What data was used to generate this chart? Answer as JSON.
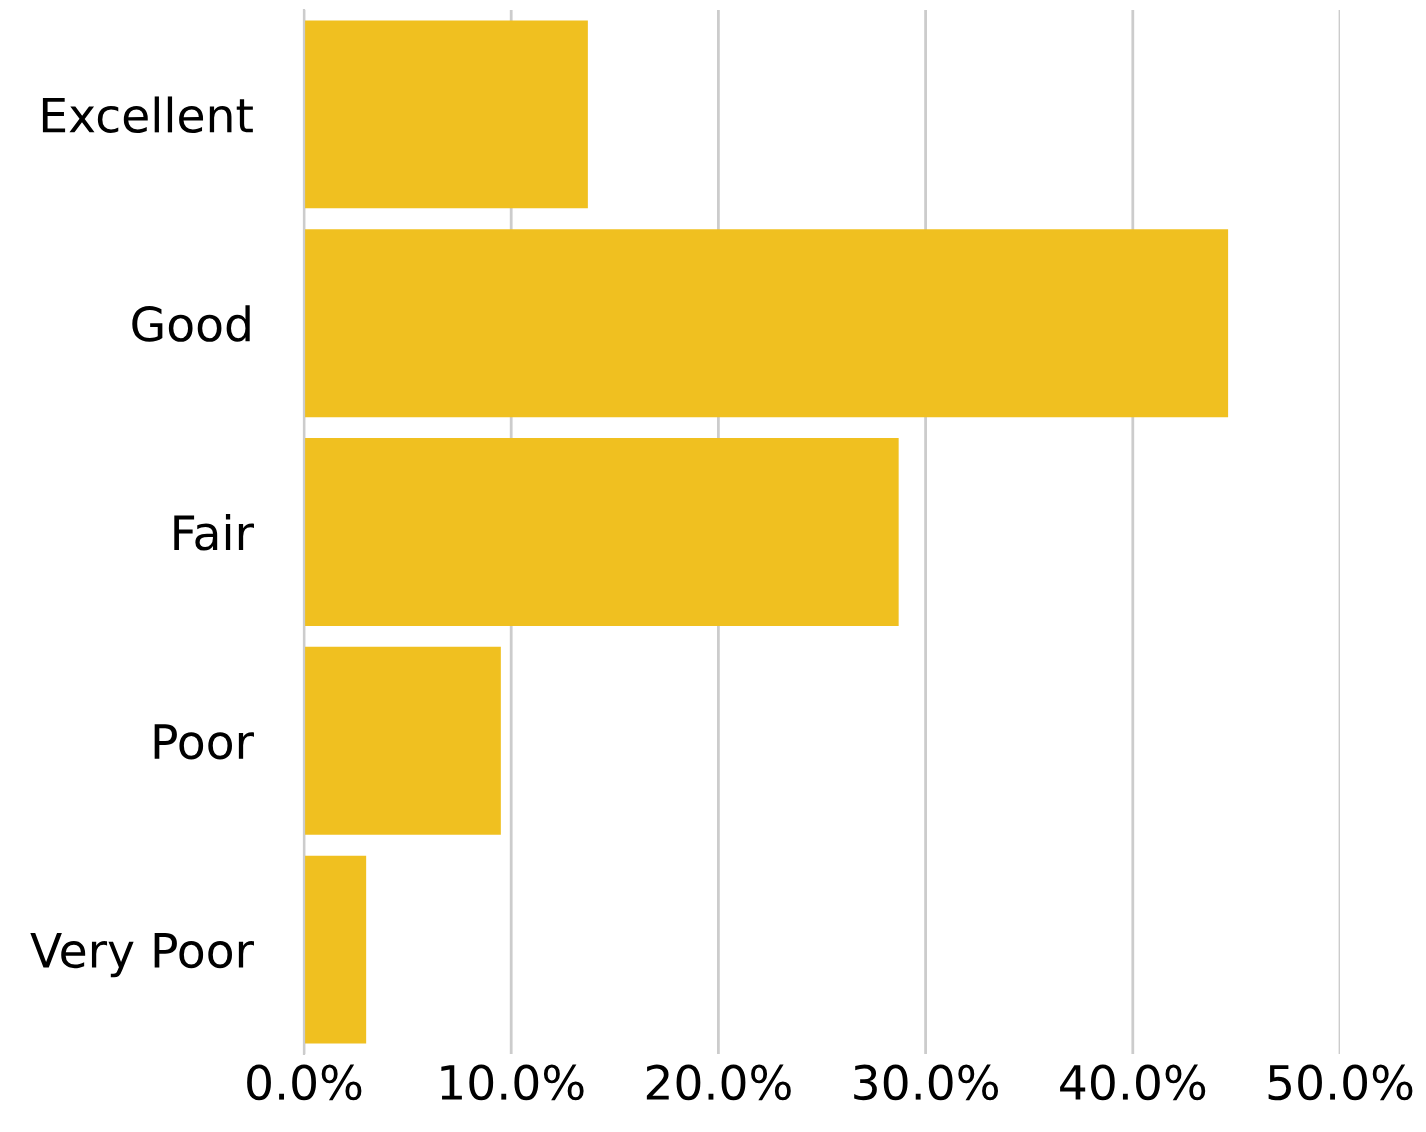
{
  "chart_data": {
    "type": "bar",
    "orientation": "horizontal",
    "categories": [
      "Excellent",
      "Good",
      "Fair",
      "Poor",
      "Very Poor"
    ],
    "values": [
      13.7,
      44.6,
      28.7,
      9.5,
      3.0
    ],
    "color": "#f0c020",
    "xlim": [
      0,
      50
    ],
    "xticks": [
      {
        "value": 0,
        "label": "0.0%"
      },
      {
        "value": 10,
        "label": "10.0%"
      },
      {
        "value": 20,
        "label": "20.0%"
      },
      {
        "value": 30,
        "label": "30.0%"
      },
      {
        "value": 40,
        "label": "40.0%"
      },
      {
        "value": 50,
        "label": "50.0%"
      }
    ],
    "grid": "x"
  }
}
